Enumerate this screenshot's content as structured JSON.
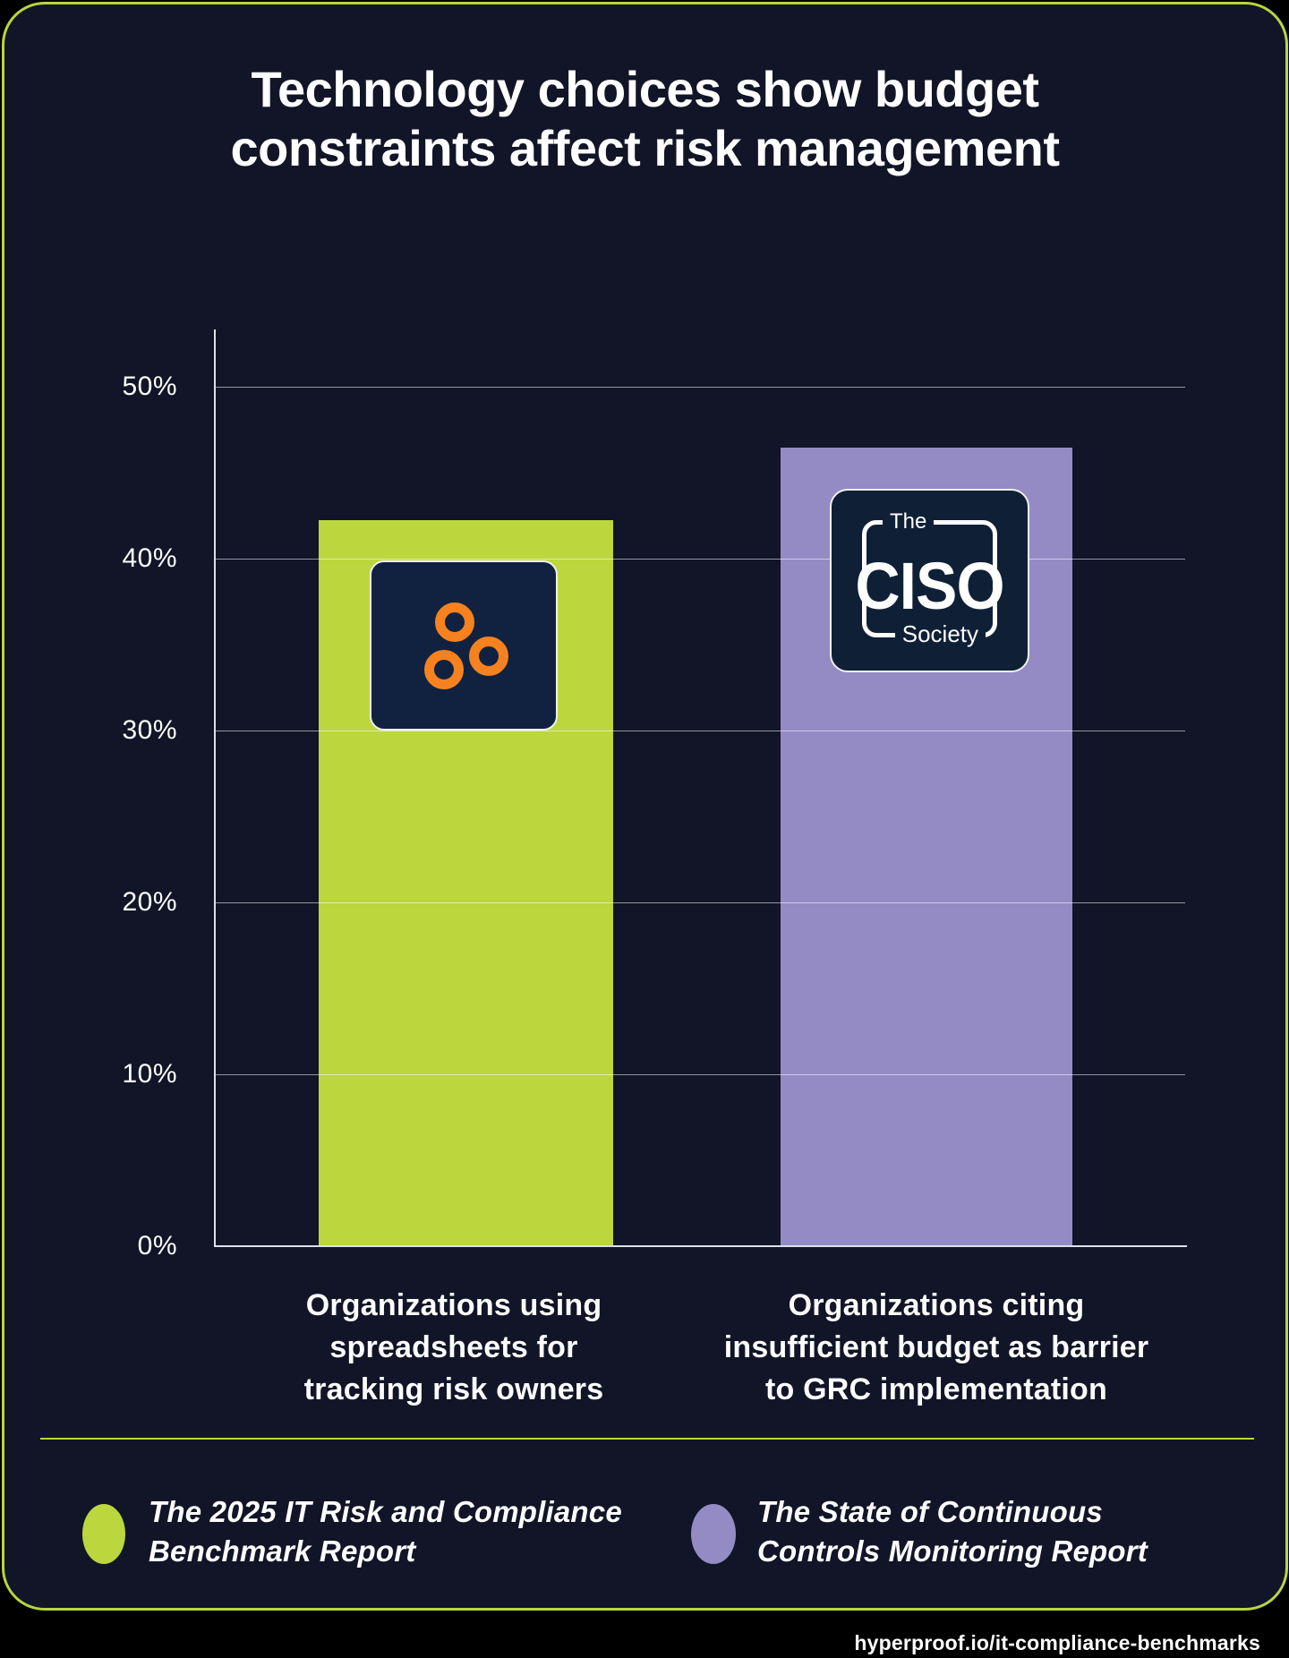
{
  "page": {
    "title_line1": "Technology choices show budget",
    "title_line2": "constraints affect risk management",
    "footer_url": "hyperproof.io/it-compliance-benchmarks"
  },
  "chart_data": {
    "type": "bar",
    "title": "Technology choices show budget constraints affect risk management",
    "categories": [
      "Organizations using spreadsheets for tracking risk owners",
      "Organizations citing insufficient budget as barrier to GRC implementation"
    ],
    "values": [
      42.3,
      46.5
    ],
    "unit": "%",
    "xlabel": "",
    "ylabel": "",
    "ylim": [
      0,
      53
    ],
    "grid": true,
    "legend_position": "bottom",
    "y_tick_labels": [
      "50%",
      "40%",
      "30%",
      "20%",
      "10%",
      "0%"
    ],
    "label_lines": [
      [
        "Organizations using",
        "spreadsheets for",
        "tracking risk owners"
      ],
      [
        "Organizations citing",
        "insufficient budget as barrier",
        "to GRC implementation"
      ]
    ],
    "series_colors": [
      "#bcd63d",
      "#948bc5"
    ]
  },
  "legend": {
    "items": [
      {
        "lines": [
          "The 2025 IT Risk and Compliance",
          "Benchmark Report"
        ],
        "color": "#bcd63d"
      },
      {
        "lines": [
          "The State of Continuous",
          "Controls Monitoring Report"
        ],
        "color": "#948bc5"
      }
    ]
  },
  "logos": {
    "hyperproof": {
      "name": "hyperproof-three-rings",
      "ring_color": "#f6821f",
      "tile_color": "#112240"
    },
    "ciso_society": {
      "the": "The",
      "ciso": "CISO",
      "society": "Society",
      "tile_color": "#0f2036"
    }
  },
  "colors": {
    "background": "#000000",
    "card_background": "#111527",
    "card_border": "#b9d540",
    "divider": "#b9d540",
    "bar_green": "#bcd63d",
    "bar_purple": "#948bc5",
    "orange_rings": "#f6821f",
    "gridline": "rgba(255,255,255,0.55)",
    "text": "#ffffff"
  }
}
